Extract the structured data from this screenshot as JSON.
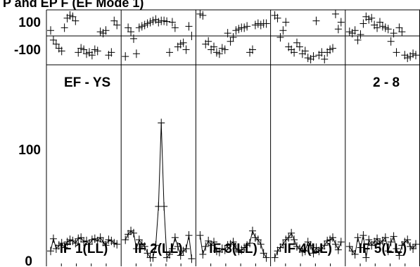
{
  "chart_data": {
    "type": "line",
    "title": "P and EP F (EF Mode 1)",
    "top_panel": {
      "yticks": [
        "100",
        "-100"
      ],
      "reference_line": 0
    },
    "main_panel": {
      "yticks": [
        "100",
        "0"
      ],
      "ylim": [
        0,
        140
      ],
      "annotations": {
        "left": "EF - YS",
        "right": "2 - 8"
      }
    },
    "panels": [
      {
        "label": "IF 1(LL)",
        "phase": [
          40,
          -30,
          -60,
          -90,
          -110,
          60,
          130,
          150,
          140,
          110,
          -120,
          -90,
          -100,
          -130,
          -120,
          -140,
          -100,
          -110,
          30,
          20,
          40,
          -140,
          -120,
          110,
          80
        ],
        "values": [
          10,
          21,
          12,
          15,
          17,
          13,
          18,
          20,
          19,
          17,
          21,
          22,
          18,
          19,
          16,
          20,
          21,
          19,
          22,
          18,
          15,
          20,
          19,
          17,
          16
        ]
      },
      {
        "label": "IF 2(LL)",
        "phase": [
          -150,
          60,
          30,
          -20,
          -130,
          60,
          70,
          80,
          90,
          100,
          110,
          120,
          100,
          110,
          110,
          105,
          -120,
          100,
          60,
          -80,
          -60,
          -50,
          -100,
          70,
          0
        ],
        "values": [
          20,
          25,
          28,
          26,
          12,
          20,
          16,
          14,
          8,
          4,
          4,
          15,
          50,
          125,
          50,
          4,
          7,
          12,
          22,
          14,
          6,
          10,
          12,
          24,
          3
        ]
      },
      {
        "label": "IF 3(LL)",
        "phase": [
          160,
          150,
          -60,
          -40,
          -100,
          -80,
          -120,
          -130,
          -90,
          -100,
          20,
          -40,
          -10,
          40,
          50,
          60,
          60,
          70,
          -120,
          -100,
          80,
          90,
          80,
          90,
          90
        ],
        "values": [
          24,
          7,
          14,
          19,
          15,
          18,
          10,
          9,
          12,
          11,
          15,
          16,
          18,
          12,
          10,
          11,
          13,
          15,
          17,
          28,
          22,
          20,
          16,
          8,
          4
        ]
      },
      {
        "label": "IF 4(LL)",
        "phase": [
          150,
          130,
          -10,
          40,
          100,
          -80,
          -100,
          -120,
          -50,
          -80,
          -130,
          -110,
          -160,
          -170,
          -150,
          110,
          -140,
          -120,
          -170,
          -120,
          -100,
          -90,
          160,
          50,
          100
        ],
        "values": [
          4,
          10,
          13,
          16,
          20,
          22,
          26,
          20,
          14,
          12,
          9,
          10,
          18,
          15,
          8,
          13,
          10,
          12,
          15,
          19,
          20,
          22,
          16,
          11,
          18
        ]
      },
      {
        "label": "IF 5(LL)",
        "phase": [
          30,
          20,
          40,
          -30,
          10,
          90,
          140,
          120,
          130,
          80,
          60,
          100,
          70,
          60,
          50,
          -40,
          20,
          -120,
          60,
          30,
          -140,
          -160,
          -150,
          -130,
          -140
        ],
        "values": [
          14,
          10,
          7,
          22,
          13,
          24,
          4,
          20,
          15,
          18,
          21,
          17,
          19,
          22,
          10,
          18,
          23,
          12,
          6,
          15,
          18,
          20,
          14,
          12,
          16
        ]
      }
    ]
  }
}
